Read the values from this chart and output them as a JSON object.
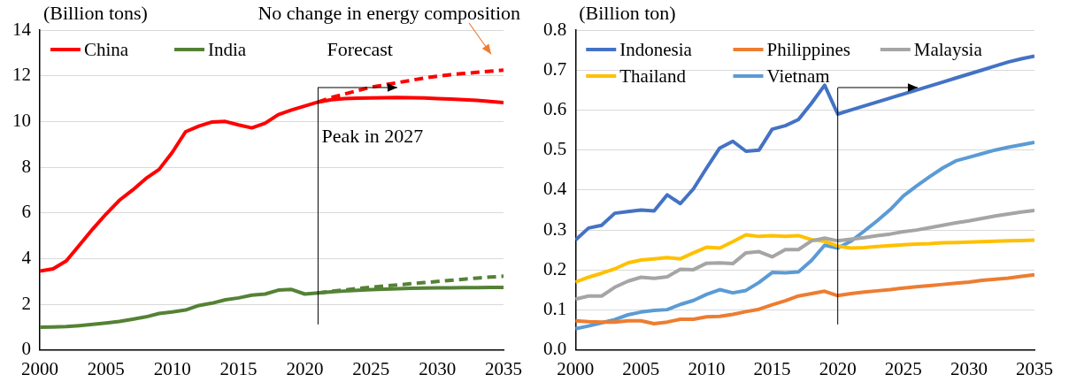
{
  "chart_data": [
    {
      "type": "line",
      "ylabel": "(Billion tons)",
      "x": [
        2000,
        2001,
        2002,
        2003,
        2004,
        2005,
        2006,
        2007,
        2008,
        2009,
        2010,
        2011,
        2012,
        2013,
        2014,
        2015,
        2016,
        2017,
        2018,
        2019,
        2020,
        2021,
        2022,
        2023,
        2024,
        2025,
        2026,
        2027,
        2028,
        2029,
        2030,
        2031,
        2032,
        2033,
        2034,
        2035
      ],
      "xlim": [
        2000,
        2035
      ],
      "xticks": [
        2000,
        2005,
        2010,
        2015,
        2020,
        2025,
        2030,
        2035
      ],
      "ylim": [
        0,
        14
      ],
      "yticks": [
        0,
        2,
        4,
        6,
        8,
        10,
        12,
        14
      ],
      "grid": "y",
      "legend": "top left",
      "line_style": "solid",
      "series": [
        {
          "name": "China",
          "color": "#ff0000",
          "values": [
            3.45,
            3.55,
            3.9,
            4.6,
            5.3,
            5.95,
            6.55,
            7.0,
            7.5,
            7.9,
            8.65,
            9.55,
            9.8,
            9.98,
            10.0,
            9.85,
            9.72,
            9.92,
            10.3,
            10.5,
            10.68,
            10.85,
            10.95,
            11.0,
            11.02,
            11.03,
            11.04,
            11.05,
            11.04,
            11.03,
            11.0,
            10.98,
            10.95,
            10.92,
            10.88,
            10.83
          ]
        },
        {
          "name": "India",
          "color": "#548235",
          "values": [
            1.0,
            1.01,
            1.03,
            1.07,
            1.12,
            1.18,
            1.25,
            1.35,
            1.45,
            1.6,
            1.67,
            1.75,
            1.95,
            2.05,
            2.2,
            2.28,
            2.4,
            2.45,
            2.62,
            2.65,
            2.45,
            2.5,
            2.55,
            2.58,
            2.61,
            2.64,
            2.66,
            2.68,
            2.7,
            2.71,
            2.72,
            2.72,
            2.73,
            2.73,
            2.74,
            2.74
          ]
        },
        {
          "color": "#ff0000",
          "line_style": "dashed",
          "x": [
            2021,
            2022,
            2023,
            2024,
            2025,
            2026,
            2027,
            2028,
            2029,
            2030,
            2031,
            2032,
            2033,
            2034,
            2035
          ],
          "values": [
            10.85,
            11.05,
            11.2,
            11.35,
            11.5,
            11.6,
            11.7,
            11.8,
            11.9,
            11.98,
            12.05,
            12.1,
            12.15,
            12.2,
            12.25
          ]
        },
        {
          "color": "#548235",
          "line_style": "dashed",
          "x": [
            2021,
            2022,
            2023,
            2024,
            2025,
            2026,
            2027,
            2028,
            2029,
            2030,
            2031,
            2032,
            2033,
            2034,
            2035
          ],
          "values": [
            2.5,
            2.57,
            2.63,
            2.69,
            2.75,
            2.8,
            2.85,
            2.9,
            2.95,
            3.0,
            3.05,
            3.1,
            3.15,
            3.19,
            3.23
          ]
        }
      ],
      "ref_lines": [
        {
          "axis": "x",
          "value": 2021,
          "color": "#000000"
        }
      ],
      "annotations": [
        "No change in energy composition",
        "Forecast",
        "Peak in 2027"
      ]
    },
    {
      "type": "line",
      "ylabel": "(Billion ton)",
      "x": [
        2000,
        2001,
        2002,
        2003,
        2004,
        2005,
        2006,
        2007,
        2008,
        2009,
        2010,
        2011,
        2012,
        2013,
        2014,
        2015,
        2016,
        2017,
        2018,
        2019,
        2020,
        2021,
        2022,
        2023,
        2024,
        2025,
        2026,
        2027,
        2028,
        2029,
        2030,
        2031,
        2032,
        2033,
        2034,
        2035
      ],
      "xlim": [
        2000,
        2035
      ],
      "xticks": [
        2000,
        2005,
        2010,
        2015,
        2020,
        2025,
        2030,
        2035
      ],
      "ylim": [
        0,
        0.8
      ],
      "yticks": [
        {
          "value": 0,
          "label": "0.0"
        },
        {
          "value": 0.1,
          "label": "0.1"
        },
        {
          "value": 0.2,
          "label": "0.2"
        },
        {
          "value": 0.3,
          "label": "0.3"
        },
        {
          "value": 0.4,
          "label": "0.4"
        },
        {
          "value": 0.5,
          "label": "0.5"
        },
        {
          "value": 0.6,
          "label": "0.6"
        },
        {
          "value": 0.7,
          "label": "0.7"
        },
        {
          "value": 0.8,
          "label": "0.8"
        }
      ],
      "grid": "y",
      "legend": "top left",
      "line_style": "solid",
      "series": [
        {
          "name": "Indonesia",
          "color": "#4472c4",
          "values": [
            0.275,
            0.305,
            0.312,
            0.342,
            0.346,
            0.35,
            0.348,
            0.388,
            0.366,
            0.403,
            0.455,
            0.505,
            0.522,
            0.497,
            0.5,
            0.552,
            0.561,
            0.576,
            0.617,
            0.662,
            0.59,
            0.6,
            0.61,
            0.62,
            0.63,
            0.64,
            0.65,
            0.66,
            0.67,
            0.68,
            0.69,
            0.7,
            0.71,
            0.72,
            0.728,
            0.735
          ]
        },
        {
          "name": "Philippines",
          "color": "#ed7d31",
          "values": [
            0.073,
            0.071,
            0.07,
            0.07,
            0.073,
            0.073,
            0.066,
            0.07,
            0.077,
            0.077,
            0.083,
            0.084,
            0.089,
            0.096,
            0.102,
            0.113,
            0.123,
            0.135,
            0.141,
            0.147,
            0.136,
            0.141,
            0.145,
            0.148,
            0.151,
            0.155,
            0.158,
            0.161,
            0.164,
            0.167,
            0.17,
            0.174,
            0.177,
            0.18,
            0.184,
            0.188
          ]
        },
        {
          "name": "Malaysia",
          "color": "#a5a5a5",
          "values": [
            0.127,
            0.135,
            0.135,
            0.157,
            0.172,
            0.182,
            0.179,
            0.183,
            0.202,
            0.201,
            0.217,
            0.218,
            0.216,
            0.243,
            0.246,
            0.233,
            0.251,
            0.251,
            0.273,
            0.28,
            0.273,
            0.277,
            0.281,
            0.286,
            0.29,
            0.296,
            0.3,
            0.306,
            0.312,
            0.318,
            0.323,
            0.329,
            0.335,
            0.34,
            0.345,
            0.349
          ]
        },
        {
          "name": "Thailand",
          "color": "#ffc000",
          "values": [
            0.17,
            0.182,
            0.192,
            0.203,
            0.218,
            0.225,
            0.228,
            0.231,
            0.228,
            0.243,
            0.257,
            0.255,
            0.271,
            0.288,
            0.284,
            0.286,
            0.284,
            0.286,
            0.276,
            0.272,
            0.26,
            0.255,
            0.256,
            0.259,
            0.261,
            0.263,
            0.265,
            0.266,
            0.268,
            0.269,
            0.27,
            0.271,
            0.272,
            0.273,
            0.274,
            0.275
          ]
        },
        {
          "name": "Vietnam",
          "color": "#5b9bd5",
          "values": [
            0.053,
            0.06,
            0.068,
            0.076,
            0.088,
            0.095,
            0.099,
            0.101,
            0.114,
            0.124,
            0.139,
            0.151,
            0.143,
            0.149,
            0.169,
            0.194,
            0.193,
            0.195,
            0.224,
            0.262,
            0.255,
            0.272,
            0.297,
            0.323,
            0.351,
            0.385,
            0.41,
            0.433,
            0.455,
            0.473,
            0.482,
            0.491,
            0.5,
            0.507,
            0.513,
            0.519
          ]
        }
      ],
      "ref_lines": [
        {
          "axis": "x",
          "value": 2020,
          "color": "#000000"
        }
      ]
    }
  ]
}
